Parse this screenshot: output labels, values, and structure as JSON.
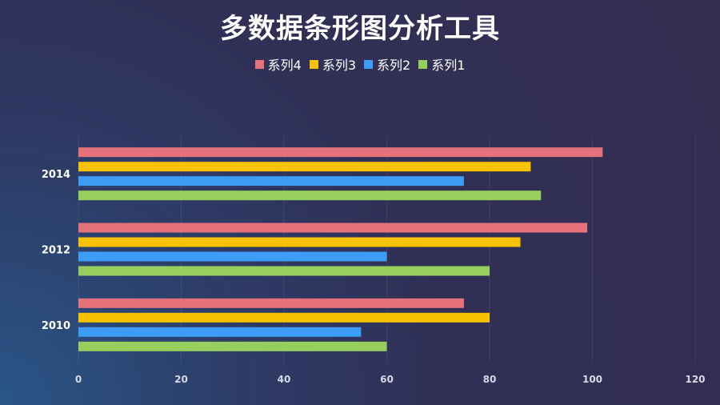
{
  "chart_data": {
    "type": "bar",
    "orientation": "horizontal",
    "title": "多数据条形图分析工具",
    "categories": [
      "2010",
      "2012",
      "2014"
    ],
    "series": [
      {
        "name": "系列4",
        "color": "#e5727a",
        "values": [
          75,
          99,
          102
        ]
      },
      {
        "name": "系列3",
        "color": "#f7c200",
        "values": [
          80,
          86,
          88
        ]
      },
      {
        "name": "系列2",
        "color": "#3d9cf5",
        "values": [
          55,
          60,
          75
        ]
      },
      {
        "name": "系列1",
        "color": "#97cf5f",
        "values": [
          60,
          80,
          90
        ]
      }
    ],
    "xticks": [
      "0",
      "20",
      "40",
      "60",
      "80",
      "100",
      "120"
    ],
    "xlim": [
      0,
      120
    ],
    "grid": "vertical",
    "legend": "top-center"
  }
}
